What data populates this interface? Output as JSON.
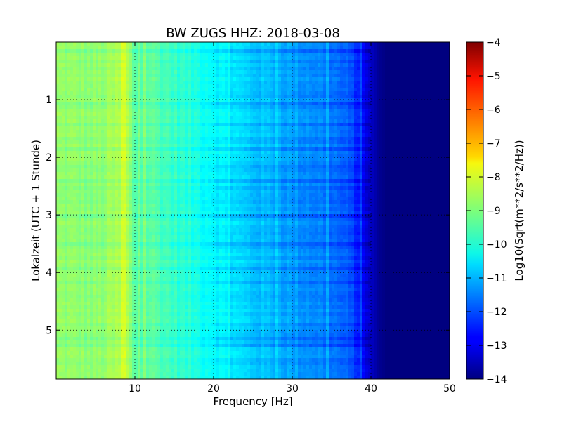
{
  "chart_data": {
    "type": "heatmap",
    "title": "BW ZUGS HHZ: 2018-03-08",
    "xlabel": "Frequency [Hz]",
    "ylabel": "Lokalzeit (UTC + 1 Stunde)",
    "xlim": [
      0,
      50
    ],
    "ylim": [
      5.85,
      0.0
    ],
    "x_ticks": [
      10,
      20,
      30,
      40,
      50
    ],
    "y_ticks": [
      1,
      2,
      3,
      4,
      5
    ],
    "grid": true,
    "colormap": "jet",
    "colorbar": {
      "label": "Log10(Sqrt(m**2/s**2/Hz))",
      "range": [
        -14,
        -4
      ],
      "ticks": [
        -4,
        -5,
        -6,
        -7,
        -8,
        -9,
        -10,
        -11,
        -12,
        -13,
        -14
      ]
    },
    "value_profile": {
      "frequency_hz": [
        0,
        5,
        9,
        10,
        12,
        15,
        18,
        20,
        23,
        25,
        28,
        30,
        33,
        35,
        37,
        38,
        39,
        40,
        41,
        42,
        50
      ],
      "log10_amplitude": [
        -8.8,
        -8.9,
        -8.5,
        -9.4,
        -9.3,
        -9.7,
        -10.0,
        -10.2,
        -10.6,
        -10.8,
        -11.0,
        -11.2,
        -11.4,
        -11.6,
        -11.9,
        -12.2,
        -12.7,
        -13.3,
        -13.8,
        -14.0,
        -14.0
      ]
    }
  }
}
